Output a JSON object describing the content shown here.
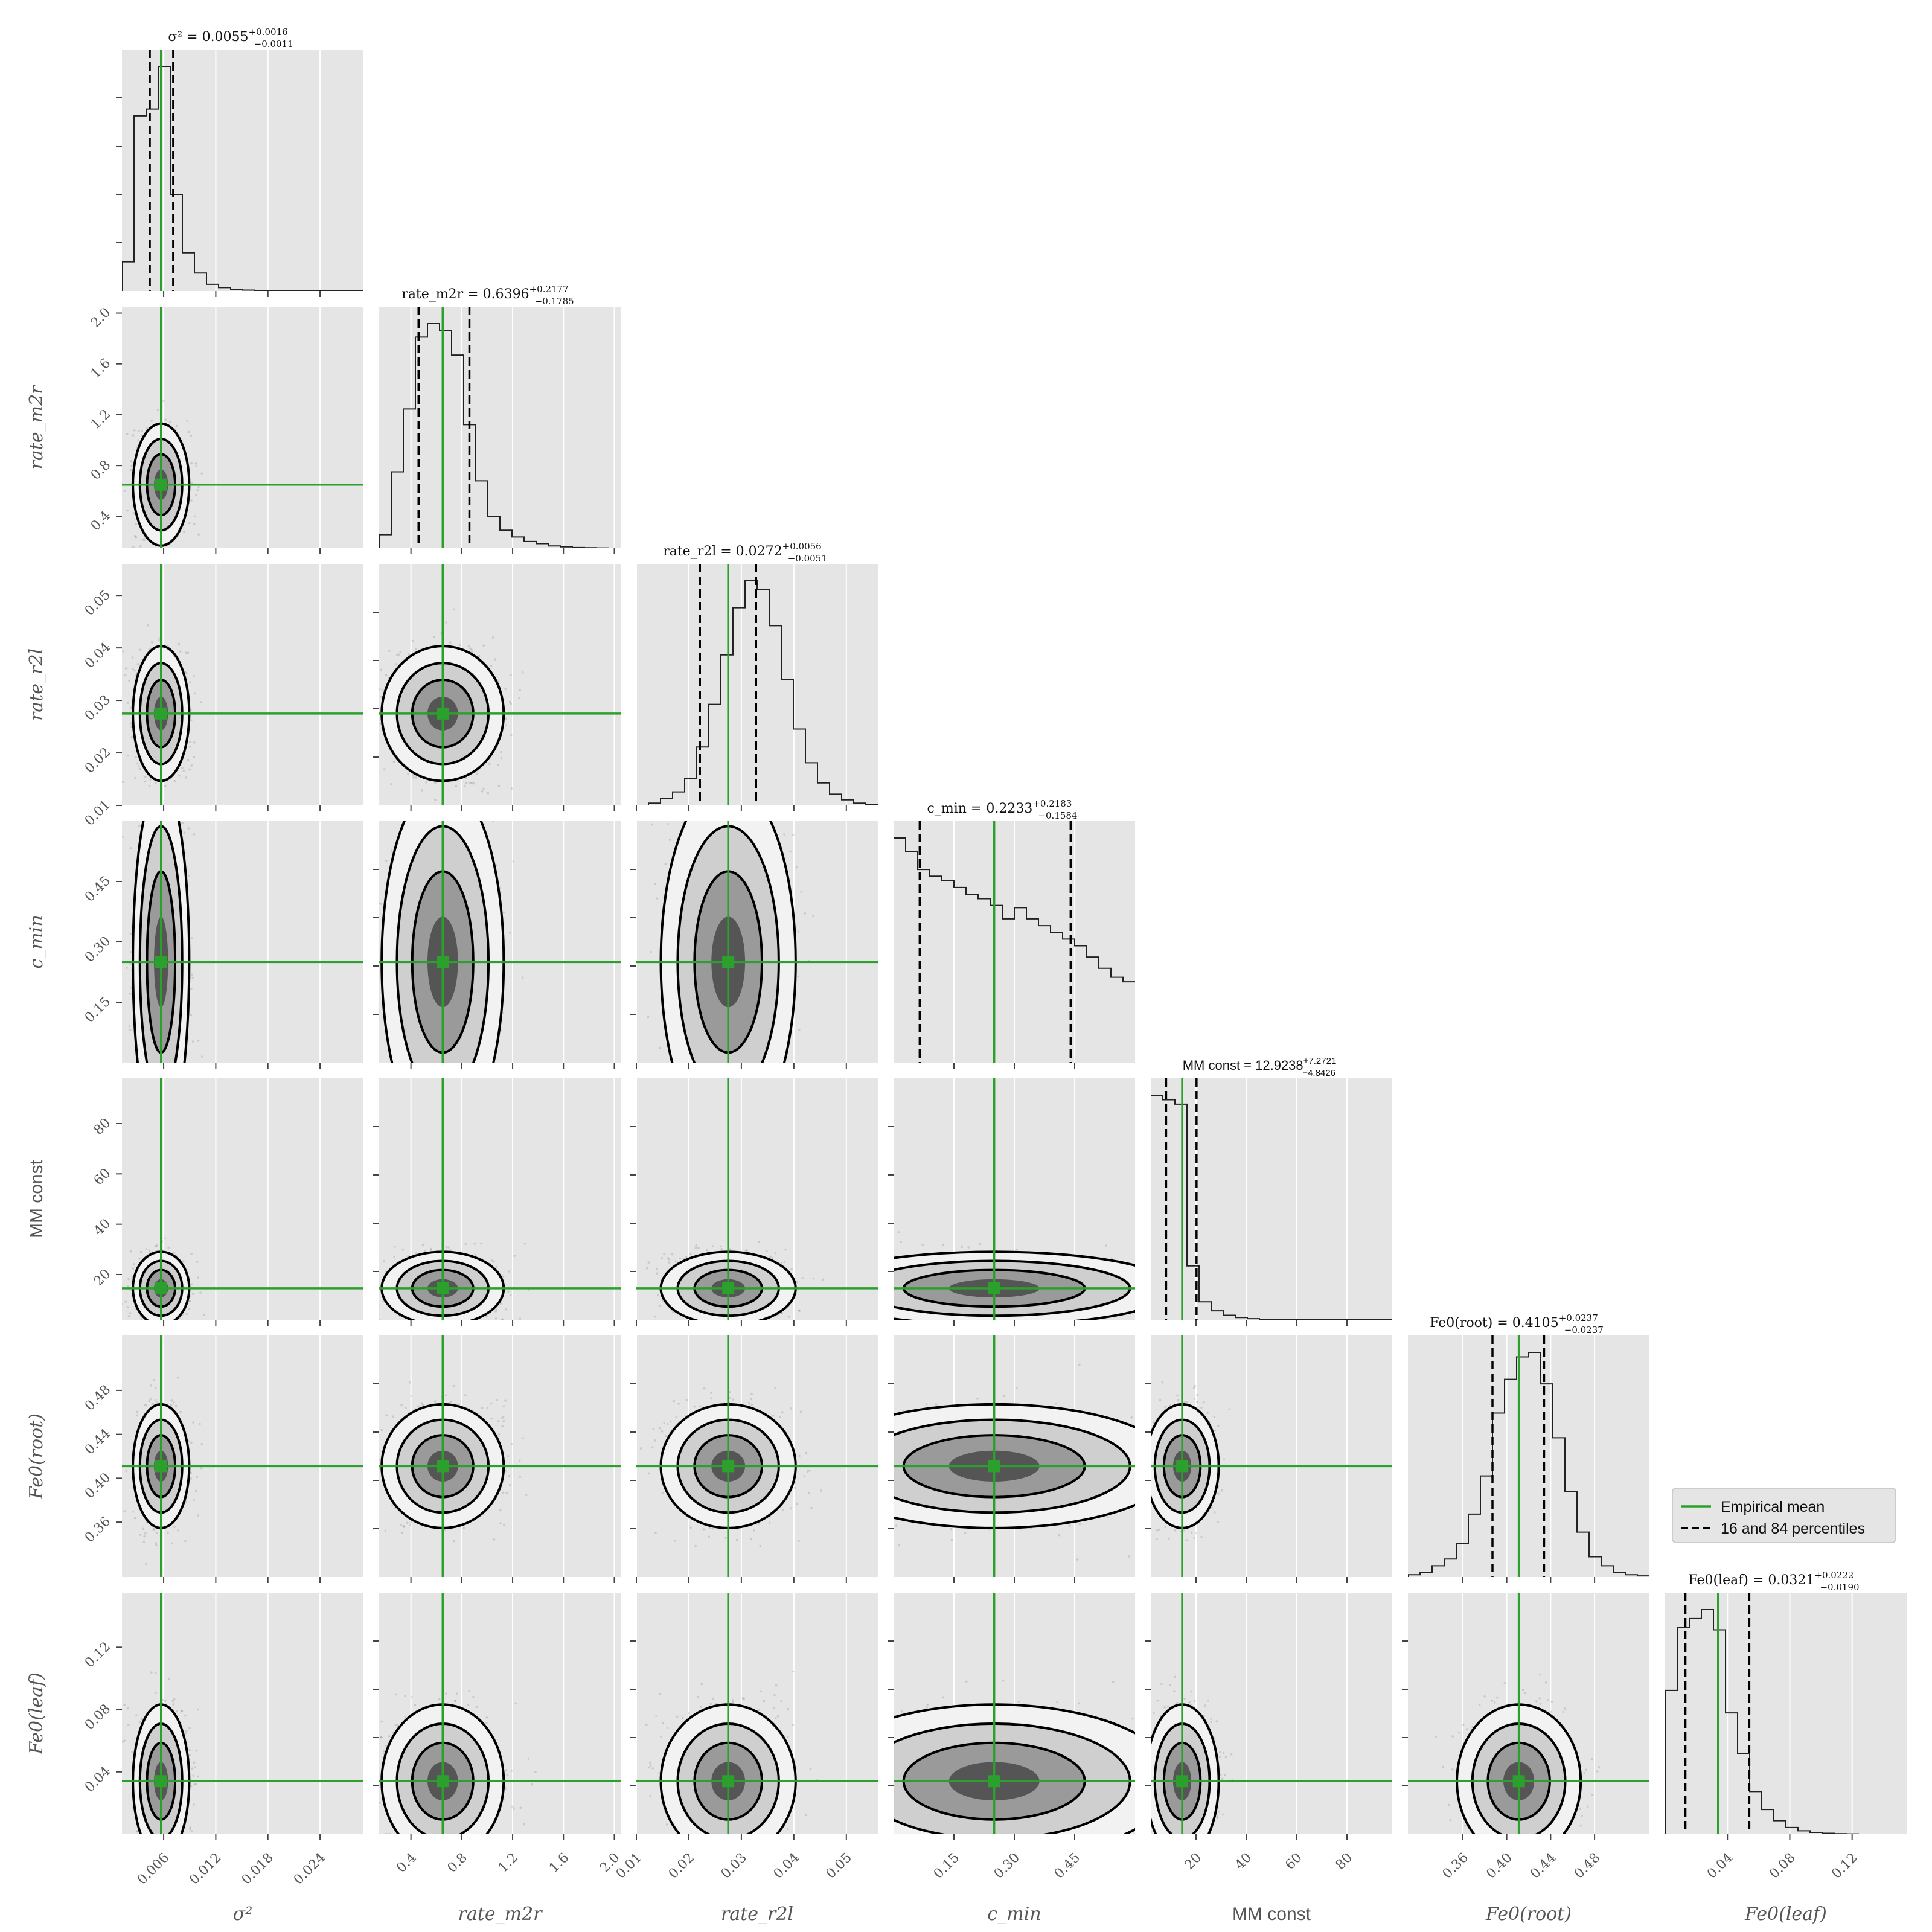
{
  "chart_data": {
    "type": "corner",
    "parameters": [
      {
        "name": "σ²",
        "axis_label": "σ²",
        "title": "σ² = 0.0055",
        "median": 0.0055,
        "err_plus": "+0.0016",
        "err_minus": "−0.0011",
        "mean": 0.0057,
        "p16": 0.0044,
        "p84": 0.0071,
        "range": [
          0.0012,
          0.029
        ],
        "ticks": [
          0.006,
          0.012,
          0.018,
          0.024
        ],
        "tick_labels": [
          "0.006",
          "0.012",
          "0.018",
          "0.024"
        ],
        "hist": [
          0.13,
          0.78,
          0.81,
          1.0,
          0.43,
          0.17,
          0.08,
          0.03,
          0.015,
          0.008,
          0.004,
          0.002,
          0.001,
          0.0005,
          0,
          0,
          0,
          0,
          0,
          0
        ],
        "sans": false
      },
      {
        "name": "rate_m2r",
        "axis_label": "rate_m2r",
        "title": "rate_m2r = 0.6396",
        "median": 0.6396,
        "err_plus": "+0.2177",
        "err_minus": "−0.1785",
        "mean": 0.65,
        "p16": 0.46,
        "p84": 0.86,
        "range": [
          0.15,
          2.05
        ],
        "ticks": [
          0.4,
          0.8,
          1.2,
          1.6,
          2.0
        ],
        "tick_labels": [
          "0.4",
          "0.8",
          "1.2",
          "1.6",
          "2.0"
        ],
        "hist": [
          0.06,
          0.34,
          0.62,
          0.94,
          1.0,
          0.97,
          0.86,
          0.55,
          0.3,
          0.14,
          0.08,
          0.05,
          0.03,
          0.02,
          0.01,
          0.006,
          0.003,
          0.002,
          0.001,
          0
        ],
        "sans": false
      },
      {
        "name": "rate_r2l",
        "axis_label": "rate_r2l",
        "title": "rate_r2l = 0.0272",
        "median": 0.0272,
        "err_plus": "+0.0056",
        "err_minus": "−0.0051",
        "mean": 0.0275,
        "p16": 0.0221,
        "p84": 0.0328,
        "range": [
          0.01,
          0.056
        ],
        "ticks": [
          0.01,
          0.02,
          0.03,
          0.04,
          0.05
        ],
        "tick_labels": [
          "0.01",
          "0.02",
          "0.03",
          "0.04",
          "0.05"
        ],
        "hist": [
          0,
          0.01,
          0.03,
          0.06,
          0.12,
          0.26,
          0.45,
          0.67,
          0.88,
          1.0,
          0.96,
          0.8,
          0.56,
          0.34,
          0.19,
          0.1,
          0.05,
          0.025,
          0.01,
          0.004
        ],
        "sans": false
      },
      {
        "name": "c_min",
        "axis_label": "c_min",
        "title": "c_min = 0.2233",
        "median": 0.2233,
        "err_plus": "+0.2183",
        "err_minus": "−0.1584",
        "mean": 0.25,
        "p16": 0.065,
        "p84": 0.44,
        "range": [
          0.0,
          0.6
        ],
        "ticks": [
          0.15,
          0.3,
          0.45
        ],
        "tick_labels": [
          "0.15",
          "0.30",
          "0.45"
        ],
        "hist": [
          1.0,
          0.94,
          0.86,
          0.83,
          0.81,
          0.78,
          0.75,
          0.73,
          0.7,
          0.64,
          0.69,
          0.64,
          0.61,
          0.58,
          0.55,
          0.52,
          0.47,
          0.42,
          0.38,
          0.36
        ],
        "sans": false
      },
      {
        "name": "MM const",
        "axis_label": "MM const",
        "title": "MM const = 12.9238",
        "median": 12.9238,
        "err_plus": "+7.2721",
        "err_minus": "−4.8426",
        "mean": 14.5,
        "p16": 8.1,
        "p84": 20.2,
        "range": [
          2,
          98
        ],
        "ticks": [
          20,
          40,
          60,
          80
        ],
        "tick_labels": [
          "20",
          "40",
          "60",
          "80"
        ],
        "hist": [
          1.0,
          0.98,
          0.96,
          0.24,
          0.08,
          0.04,
          0.02,
          0.01,
          0.005,
          0.002,
          0.001,
          0.001,
          0,
          0,
          0,
          0,
          0,
          0,
          0,
          0
        ],
        "sans": true
      },
      {
        "name": "Fe0(root)",
        "axis_label": "Fe0(root)",
        "title": "Fe0(root) = 0.4105",
        "median": 0.4105,
        "err_plus": "+0.0237",
        "err_minus": "−0.0237",
        "mean": 0.411,
        "p16": 0.387,
        "p84": 0.434,
        "range": [
          0.31,
          0.53
        ],
        "ticks": [
          0.36,
          0.4,
          0.44,
          0.48
        ],
        "tick_labels": [
          "0.36",
          "0.40",
          "0.44",
          "0.48"
        ],
        "hist": [
          0.01,
          0.02,
          0.05,
          0.08,
          0.15,
          0.28,
          0.45,
          0.73,
          0.88,
          0.98,
          1.0,
          0.86,
          0.62,
          0.38,
          0.2,
          0.09,
          0.05,
          0.02,
          0.01,
          0.005
        ],
        "sans": false
      },
      {
        "name": "Fe0(leaf)",
        "axis_label": "Fe0(leaf)",
        "title": "Fe0(leaf) = 0.0321",
        "median": 0.0321,
        "err_plus": "+0.0222",
        "err_minus": "−0.0190",
        "mean": 0.034,
        "p16": 0.013,
        "p84": 0.054,
        "range": [
          0.0,
          0.155
        ],
        "ticks": [
          0.04,
          0.08,
          0.12
        ],
        "tick_labels": [
          "0.04",
          "0.08",
          "0.12"
        ],
        "hist": [
          0.64,
          0.92,
          0.96,
          1.0,
          0.91,
          0.54,
          0.36,
          0.19,
          0.11,
          0.06,
          0.03,
          0.015,
          0.008,
          0.004,
          0.002,
          0.001,
          0,
          0,
          0,
          0
        ],
        "sans": false
      }
    ],
    "y_ticks": {
      "rate_m2r": {
        "ticks": [
          0.4,
          0.8,
          1.2,
          1.6,
          2.0
        ],
        "labels": [
          "0.4",
          "0.8",
          "1.2",
          "1.6",
          "2.0"
        ]
      },
      "rate_r2l": {
        "ticks": [
          0.01,
          0.02,
          0.03,
          0.04,
          0.05
        ],
        "labels": [
          "0.01",
          "0.02",
          "0.03",
          "0.04",
          "0.05"
        ]
      },
      "c_min": {
        "ticks": [
          0.15,
          0.3,
          0.45
        ],
        "labels": [
          "0.15",
          "0.30",
          "0.45"
        ]
      },
      "MM const": {
        "ticks": [
          20,
          40,
          60,
          80
        ],
        "labels": [
          "20",
          "40",
          "60",
          "80"
        ]
      },
      "Fe0(root)": {
        "ticks": [
          0.36,
          0.4,
          0.44,
          0.48
        ],
        "labels": [
          "0.36",
          "0.40",
          "0.44",
          "0.48"
        ]
      },
      "Fe0(leaf)": {
        "ticks": [
          0.04,
          0.08,
          0.12
        ],
        "labels": [
          "0.04",
          "0.08",
          "0.12"
        ]
      }
    },
    "legend": {
      "placement": "right, between Fe0(root) and Fe0(leaf) diagonal panels",
      "entries": [
        {
          "label": "Empirical mean",
          "style": "solid",
          "color": "#2ca02c"
        },
        {
          "label": "16 and 84 percentiles",
          "style": "dashed",
          "color": "#000000"
        }
      ]
    },
    "grid": true,
    "colors": {
      "panel_bg": "#e5e5e5",
      "grid": "#ffffff",
      "mean": "#2ca02c",
      "contour": "#000000",
      "text": "#555555"
    }
  }
}
